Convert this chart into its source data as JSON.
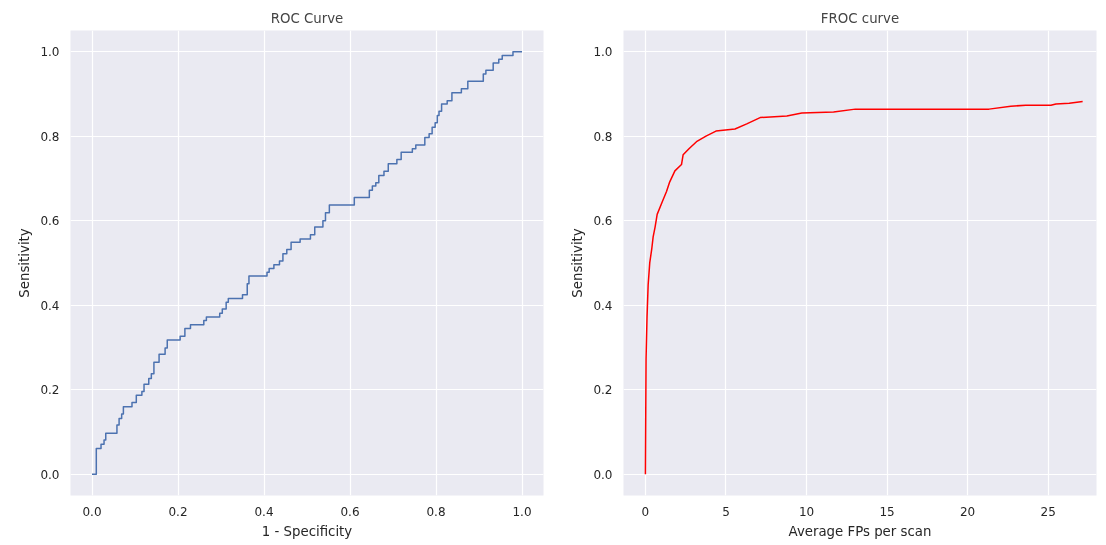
{
  "chart_data": [
    {
      "type": "step",
      "title": "ROC Curve",
      "xlabel": "1 - Specificity",
      "ylabel": "Sensitivity",
      "grid": true,
      "xlim": [
        -0.05,
        1.05
      ],
      "ylim": [
        -0.05,
        1.05
      ],
      "xticks": [
        {
          "value": 0,
          "label": "0.0"
        },
        {
          "value": 0.2,
          "label": "0.2"
        },
        {
          "value": 0.4,
          "label": "0.4"
        },
        {
          "value": 0.6,
          "label": "0.6"
        },
        {
          "value": 0.8,
          "label": "0.8"
        },
        {
          "value": 1,
          "label": "1.0"
        }
      ],
      "yticks": [
        {
          "value": 0,
          "label": "0.0"
        },
        {
          "value": 0.2,
          "label": "0.2"
        },
        {
          "value": 0.4,
          "label": "0.4"
        },
        {
          "value": 0.6,
          "label": "0.6"
        },
        {
          "value": 0.8,
          "label": "0.8"
        },
        {
          "value": 1,
          "label": "1.0"
        }
      ],
      "x": [
        0,
        0.01,
        0.021,
        0.028,
        0.032,
        0.058,
        0.063,
        0.069,
        0.073,
        0.093,
        0.103,
        0.116,
        0.121,
        0.132,
        0.138,
        0.144,
        0.156,
        0.17,
        0.175,
        0.205,
        0.216,
        0.229,
        0.26,
        0.266,
        0.297,
        0.303,
        0.312,
        0.317,
        0.35,
        0.361,
        0.365,
        0.407,
        0.412,
        0.423,
        0.436,
        0.444,
        0.453,
        0.463,
        0.484,
        0.508,
        0.518,
        0.537,
        0.543,
        0.552,
        0.61,
        0.645,
        0.652,
        0.66,
        0.667,
        0.679,
        0.689,
        0.709,
        0.719,
        0.745,
        0.753,
        0.774,
        0.784,
        0.791,
        0.798,
        0.803,
        0.807,
        0.813,
        0.826,
        0.837,
        0.859,
        0.874,
        0.91,
        0.916,
        0.933,
        0.946,
        0.954,
        0.979,
        1.0
      ],
      "series": [
        {
          "color": "#4c72b0",
          "values": [
            0,
            0.061,
            0.071,
            0.081,
            0.097,
            0.117,
            0.132,
            0.143,
            0.16,
            0.17,
            0.187,
            0.196,
            0.213,
            0.227,
            0.238,
            0.265,
            0.284,
            0.299,
            0.318,
            0.327,
            0.345,
            0.354,
            0.364,
            0.372,
            0.381,
            0.391,
            0.407,
            0.416,
            0.425,
            0.451,
            0.469,
            0.478,
            0.487,
            0.496,
            0.505,
            0.522,
            0.532,
            0.549,
            0.557,
            0.567,
            0.585,
            0.6,
            0.619,
            0.637,
            0.655,
            0.672,
            0.682,
            0.69,
            0.707,
            0.717,
            0.735,
            0.745,
            0.762,
            0.77,
            0.779,
            0.797,
            0.806,
            0.821,
            0.832,
            0.849,
            0.859,
            0.876,
            0.884,
            0.903,
            0.912,
            0.93,
            0.947,
            0.956,
            0.973,
            0.982,
            0.991,
            1.0,
            1.0
          ]
        }
      ]
    },
    {
      "type": "line",
      "title": "FROC curve",
      "xlabel": "Average FPs per scan",
      "ylabel": "Sensitivity",
      "grid": true,
      "xlim": [
        -1.36,
        28.0
      ],
      "ylim": [
        -0.05,
        1.05
      ],
      "xticks": [
        0,
        5,
        10,
        15,
        20,
        25
      ],
      "yticks": [
        {
          "value": 0,
          "label": "0.0"
        },
        {
          "value": 0.2,
          "label": "0.2"
        },
        {
          "value": 0.4,
          "label": "0.4"
        },
        {
          "value": 0.6,
          "label": "0.6"
        },
        {
          "value": 0.8,
          "label": "0.8"
        },
        {
          "value": 1,
          "label": "1.0"
        }
      ],
      "x": [
        0,
        0.04,
        0.1,
        0.17,
        0.27,
        0.39,
        0.48,
        0.6,
        0.73,
        1.06,
        1.31,
        1.51,
        1.83,
        2.24,
        2.34,
        2.72,
        3.17,
        3.76,
        4.38,
        5.56,
        6.29,
        7.12,
        8.78,
        9.71,
        11.68,
        13.03,
        21.33,
        22.68,
        23.61,
        25.17,
        25.48,
        26.31,
        27.14
      ],
      "series": [
        {
          "color": "#ff0000",
          "values": [
            0,
            0.273,
            0.372,
            0.448,
            0.501,
            0.532,
            0.562,
            0.585,
            0.615,
            0.646,
            0.669,
            0.692,
            0.718,
            0.733,
            0.756,
            0.771,
            0.787,
            0.8,
            0.812,
            0.817,
            0.829,
            0.844,
            0.848,
            0.855,
            0.857,
            0.864,
            0.864,
            0.871,
            0.873,
            0.873,
            0.876,
            0.878,
            0.882
          ]
        }
      ]
    }
  ]
}
